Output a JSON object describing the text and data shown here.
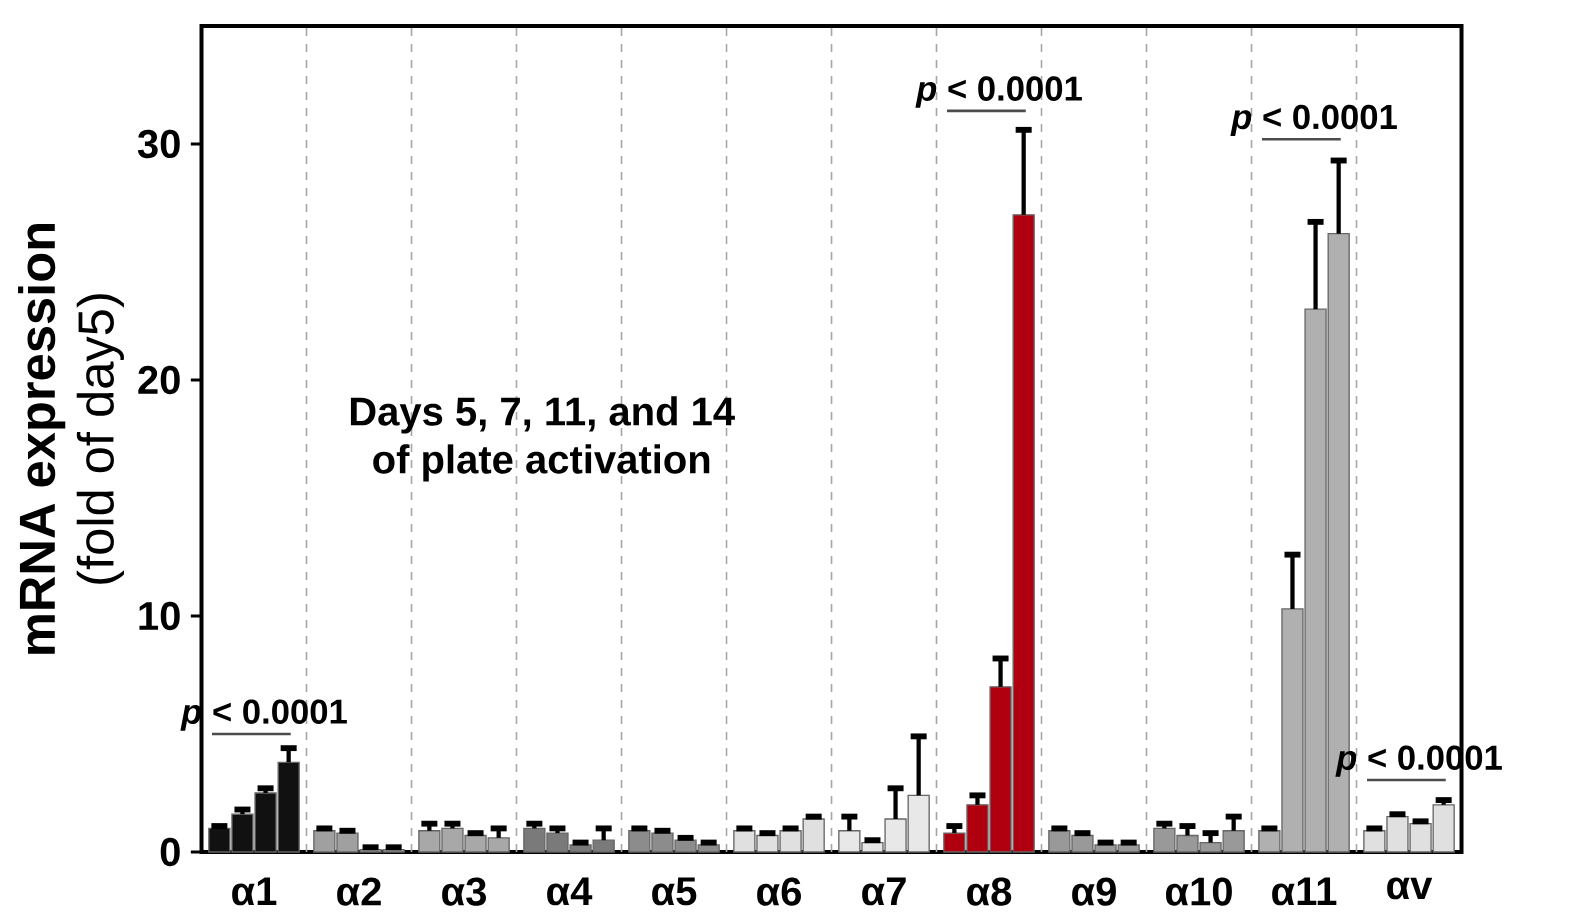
{
  "chart_data": {
    "type": "bar",
    "ylabel": "**mRNA expression** (fold of day5)",
    "categories": [
      "α1",
      "α2",
      "α3",
      "α4",
      "α5",
      "α6",
      "α7",
      "α8",
      "α9",
      "α10",
      "α11",
      "αv"
    ],
    "series": [
      {
        "values": [
          1.0,
          0.9,
          0.9,
          1.0,
          0.9,
          0.9,
          0.9,
          0.8,
          0.9,
          1.0,
          0.9,
          0.9
        ],
        "errors": [
          0.1,
          0.1,
          0.3,
          0.2,
          0.1,
          0.1,
          0.6,
          0.3,
          0.1,
          0.2,
          0.1,
          0.1
        ],
        "colors": [
          "#111111",
          "#a0a0a0",
          "#a8a8a8",
          "#7a7a7a",
          "#8c8c8c",
          "#e0e0e0",
          "#e8e8e8",
          "#b00010",
          "#999999",
          "#999999",
          "#b0b0b0",
          "#e0e0e0"
        ]
      },
      {
        "values": [
          1.6,
          0.8,
          1.0,
          0.8,
          0.8,
          0.7,
          0.4,
          2.0,
          0.7,
          0.7,
          10.3,
          1.5
        ],
        "errors": [
          0.2,
          0.1,
          0.2,
          0.2,
          0.1,
          0.1,
          0.1,
          0.4,
          0.1,
          0.4,
          2.3,
          0.1
        ],
        "colors": [
          "#111111",
          "#a0a0a0",
          "#a8a8a8",
          "#7a7a7a",
          "#8c8c8c",
          "#e0e0e0",
          "#e8e8e8",
          "#b00010",
          "#999999",
          "#999999",
          "#b0b0b0",
          "#e0e0e0"
        ]
      },
      {
        "values": [
          2.5,
          0.1,
          0.7,
          0.3,
          0.5,
          0.9,
          1.4,
          7.0,
          0.3,
          0.4,
          23.0,
          1.2
        ],
        "errors": [
          0.2,
          0.1,
          0.1,
          0.1,
          0.1,
          0.1,
          1.3,
          1.2,
          0.1,
          0.4,
          3.7,
          0.1
        ],
        "colors": [
          "#111111",
          "#a0a0a0",
          "#a8a8a8",
          "#7a7a7a",
          "#8c8c8c",
          "#e0e0e0",
          "#e8e8e8",
          "#b00010",
          "#999999",
          "#999999",
          "#b0b0b0",
          "#e0e0e0"
        ]
      },
      {
        "values": [
          3.8,
          0.1,
          0.6,
          0.5,
          0.3,
          1.4,
          2.4,
          27.0,
          0.3,
          0.9,
          26.2,
          2.0
        ],
        "errors": [
          0.6,
          0.1,
          0.4,
          0.5,
          0.1,
          0.1,
          2.5,
          3.6,
          0.1,
          0.6,
          3.1,
          0.2
        ],
        "colors": [
          "#111111",
          "#a0a0a0",
          "#a8a8a8",
          "#7a7a7a",
          "#8c8c8c",
          "#e0e0e0",
          "#e8e8e8",
          "#b00010",
          "#999999",
          "#999999",
          "#b0b0b0",
          "#e0e0e0"
        ]
      }
    ],
    "ylim": [
      0,
      35
    ],
    "yticks": [
      0,
      10,
      20,
      30
    ],
    "annotations": [
      "*p* < 0.0001",
      "*p* < 0.0001",
      "*p* < 0.0001",
      "*p* < 0.0001",
      "Days 5, 7, 11, and 14 of plate activation"
    ],
    "grid": false
  }
}
